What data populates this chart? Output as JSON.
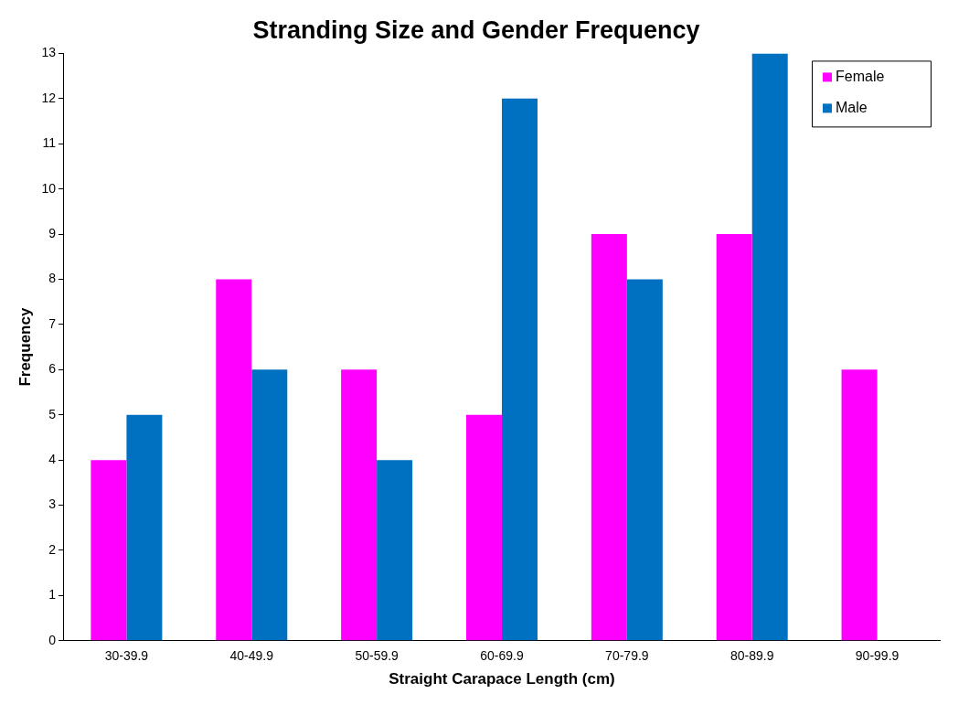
{
  "chart_data": {
    "type": "bar",
    "title": "Stranding Size and Gender Frequency",
    "xlabel": "Straight Carapace Length (cm)",
    "ylabel": "Frequency",
    "categories": [
      "30-39.9",
      "40-49.9",
      "50-59.9",
      "60-69.9",
      "70-79.9",
      "80-89.9",
      "90-99.9"
    ],
    "series": [
      {
        "name": "Female",
        "color": "#ff00ff",
        "values": [
          4,
          8,
          6,
          5,
          9,
          9,
          6
        ]
      },
      {
        "name": "Male",
        "color": "#0070c0",
        "values": [
          5,
          6,
          4,
          12,
          8,
          13,
          0
        ]
      }
    ],
    "ylim": [
      0,
      13
    ],
    "yticks": [
      0,
      1,
      2,
      3,
      4,
      5,
      6,
      7,
      8,
      9,
      10,
      11,
      12,
      13
    ],
    "grid": false,
    "legend": "top right"
  }
}
